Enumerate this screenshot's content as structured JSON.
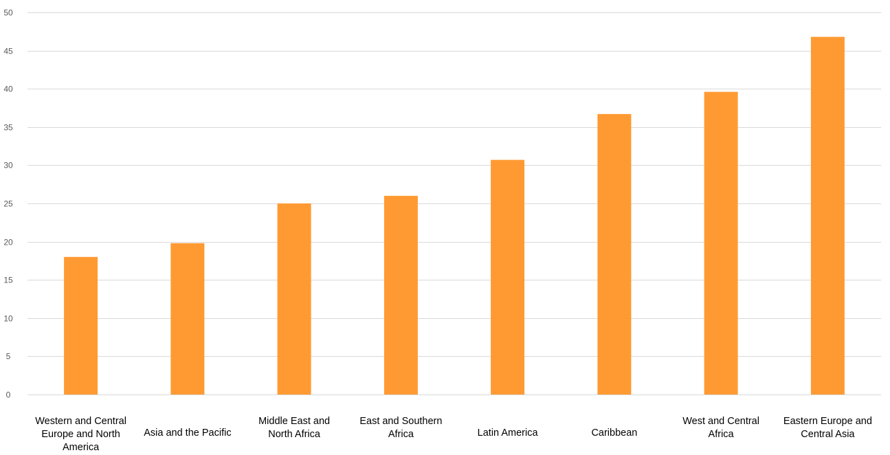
{
  "chart_data": {
    "type": "bar",
    "title": "",
    "xlabel": "",
    "ylabel": "",
    "categories": [
      "Western and Central Europe and North America",
      "Asia and the Pacific",
      "Middle East and North Africa",
      "East and Southern Africa",
      "Latin America",
      "Caribbean",
      "West and Central Africa",
      "Eastern Europe and Central Asia"
    ],
    "category_lines": [
      [
        "Western and Central",
        "Europe and North",
        "America"
      ],
      [
        "Asia and the Pacific"
      ],
      [
        "Middle East and",
        "North Africa"
      ],
      [
        "East and Southern",
        "Africa"
      ],
      [
        "Latin America"
      ],
      [
        "Caribbean"
      ],
      [
        "West and Central",
        "Africa"
      ],
      [
        "Eastern Europe and",
        "Central Asia"
      ]
    ],
    "values": [
      18.0,
      19.8,
      25.0,
      26.0,
      30.7,
      36.7,
      39.6,
      46.8
    ],
    "ylim": [
      0,
      50
    ],
    "yticks": [
      0,
      5,
      10,
      15,
      20,
      25,
      30,
      35,
      40,
      45,
      50
    ],
    "grid": true,
    "legend": "none",
    "bar_color": "#ff9a33",
    "grid_color": "#d9d9d9",
    "axis_line_color": "#d9d9d9"
  }
}
